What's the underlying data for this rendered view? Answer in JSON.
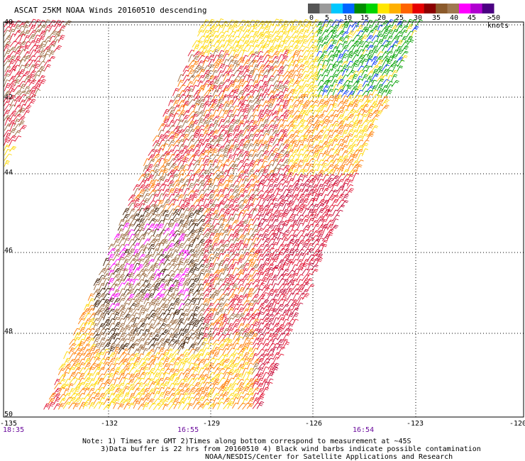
{
  "title": "ASCAT 25KM NOAA Winds 20160510 descending",
  "legend": {
    "labels": [
      "0",
      "5",
      "10",
      "15",
      "20",
      "25",
      "30",
      "35",
      "40",
      "45",
      ">50 knots"
    ],
    "colors": [
      "#555555",
      "#9a9a9a",
      "#00c8ff",
      "#0064ff",
      "#008c00",
      "#00d400",
      "#ffe600",
      "#ffb000",
      "#ff6400",
      "#e60000",
      "#8b0000",
      "#8b5a2b",
      "#a07850",
      "#ff00ff",
      "#b000d0",
      "#4b0082"
    ]
  },
  "x_ticks": [
    "-135",
    "-132",
    "-129",
    "-126",
    "-123",
    "-120"
  ],
  "y_ticks": [
    "40",
    "42",
    "44",
    "46",
    "48",
    "50"
  ],
  "times": [
    "18:35",
    "16:55",
    "16:54"
  ],
  "notes": [
    "Note: 1) Times are GMT 2)Times along bottom correspond to measurement at ~45S",
    "3)Data buffer is 22 hrs from 20160510 4) Black wind barbs indicate possible contamination",
    "NOAA/NESDIS/Center for Satellite Applications and Research"
  ]
}
